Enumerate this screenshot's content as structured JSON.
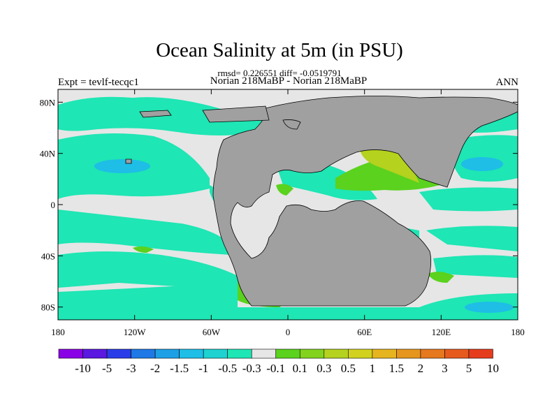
{
  "chart_data": {
    "type": "heatmap",
    "title": "Ocean Salinity at 5m (in PSU)",
    "stats_text": "rmsd= 0.226551 diff= -0.0519791",
    "left_label": "Expt = tevlf-tecqc1",
    "center_label": "Norian 218MaBP - Norian 218MaBP",
    "right_label": "ANN",
    "x_axis": {
      "range": [
        -180,
        180
      ],
      "ticks": [
        {
          "value": -180,
          "label": "180"
        },
        {
          "value": -120,
          "label": "120W"
        },
        {
          "value": -60,
          "label": "60W"
        },
        {
          "value": 0,
          "label": "0"
        },
        {
          "value": 60,
          "label": "60E"
        },
        {
          "value": 120,
          "label": "120E"
        },
        {
          "value": 180,
          "label": "180"
        }
      ]
    },
    "y_axis": {
      "range": [
        -90,
        90
      ],
      "ticks": [
        {
          "value": 80,
          "label": "80N"
        },
        {
          "value": 40,
          "label": "40N"
        },
        {
          "value": 0,
          "label": "0"
        },
        {
          "value": -40,
          "label": "40S"
        },
        {
          "value": -80,
          "label": "80S"
        }
      ]
    },
    "colorbar": {
      "colors": [
        "#8a00e6",
        "#5a18e0",
        "#2a3ce8",
        "#1e78e6",
        "#1ea0e6",
        "#1ebee6",
        "#1ed2d2",
        "#1ee6b4",
        "#e6e6e6",
        "#5ad21e",
        "#82d21e",
        "#b4d21e",
        "#d2d21e",
        "#e6b41e",
        "#e6961e",
        "#e6781e",
        "#e65a1e",
        "#e63c1e"
      ],
      "labels": [
        "-10",
        "-5",
        "-3",
        "-2",
        "-1.5",
        "-1",
        "-0.5",
        "-0.3",
        "-0.1",
        "0.1",
        "0.3",
        "0.5",
        "1",
        "1.5",
        "2",
        "3",
        "5",
        "10"
      ]
    },
    "field_levels": {
      "background": "#e6e6e6",
      "cyan": "#1ee6b4",
      "blue": "#1ebee6",
      "green": "#5ad21e",
      "yellow_green": "#b4d21e",
      "land": "#a0a0a0"
    }
  }
}
